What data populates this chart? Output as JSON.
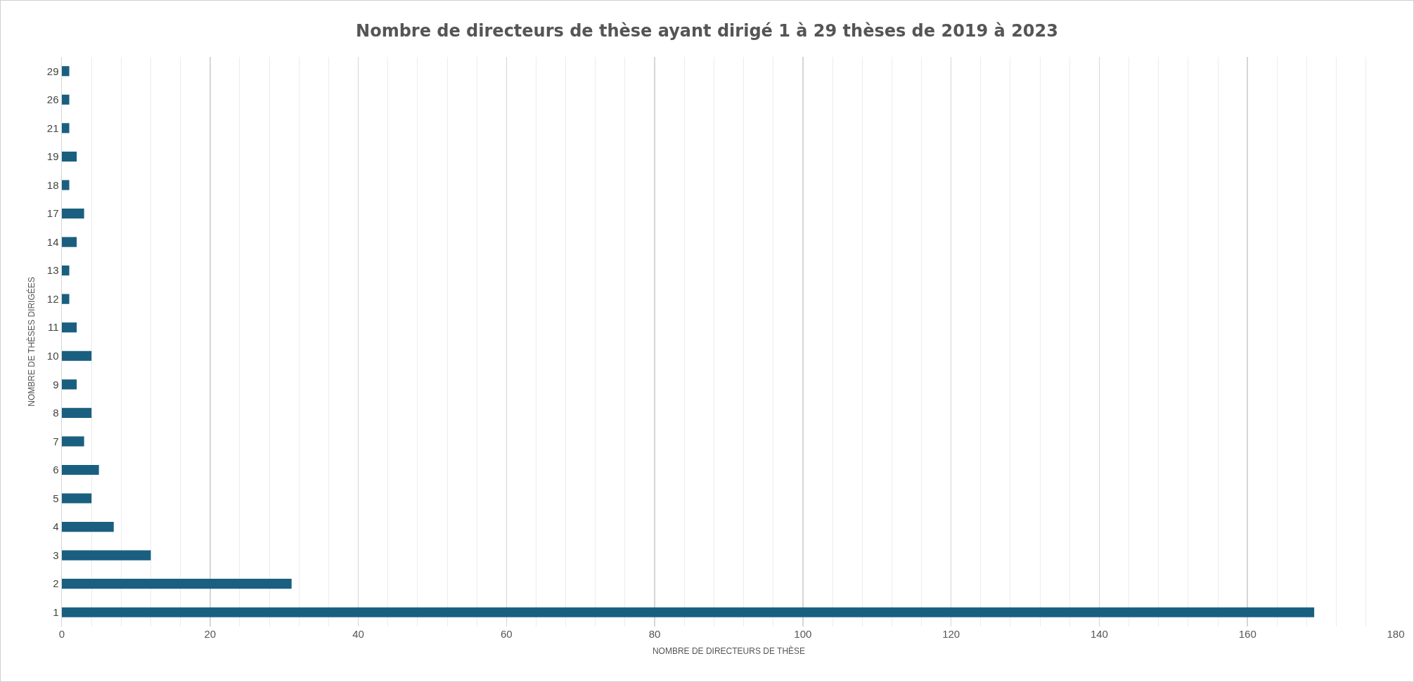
{
  "chart_data": {
    "type": "bar",
    "orientation": "horizontal",
    "title": "Nombre de directeurs de thèse ayant dirigé 1 à 29 thèses de 2019 à 2023",
    "xlabel": "NOMBRE DE DIRECTEURS DE THÈSE",
    "ylabel": "NOMBRE DE THÈSES DIRIGÉES",
    "categories": [
      "29",
      "26",
      "21",
      "19",
      "18",
      "17",
      "14",
      "13",
      "12",
      "11",
      "10",
      "9",
      "8",
      "7",
      "6",
      "5",
      "4",
      "3",
      "2",
      "1"
    ],
    "values": [
      1,
      1,
      1,
      2,
      1,
      3,
      2,
      1,
      1,
      2,
      4,
      2,
      4,
      3,
      5,
      4,
      7,
      12,
      31,
      169
    ],
    "color": "#1a5f80",
    "xlim": [
      0,
      180
    ],
    "xticks": [
      0,
      {
        "value": 4,
        "label": null
      },
      {
        "value": 8,
        "label": null
      },
      {
        "value": 12,
        "label": null
      },
      {
        "value": 16,
        "label": null
      },
      20,
      {
        "value": 24,
        "label": null
      },
      {
        "value": 28,
        "label": null
      },
      {
        "value": 32,
        "label": null
      },
      {
        "value": 36,
        "label": null
      },
      40,
      {
        "value": 44,
        "label": null
      },
      {
        "value": 48,
        "label": null
      },
      {
        "value": 52,
        "label": null
      },
      {
        "value": 56,
        "label": null
      },
      60,
      {
        "value": 64,
        "label": null
      },
      {
        "value": 68,
        "label": null
      },
      {
        "value": 72,
        "label": null
      },
      {
        "value": 76,
        "label": null
      },
      80,
      {
        "value": 84,
        "label": null
      },
      {
        "value": 88,
        "label": null
      },
      {
        "value": 92,
        "label": null
      },
      {
        "value": 96,
        "label": null
      },
      100,
      {
        "value": 104,
        "label": null
      },
      {
        "value": 108,
        "label": null
      },
      {
        "value": 112,
        "label": null
      },
      {
        "value": 116,
        "label": null
      },
      120,
      {
        "value": 124,
        "label": null
      },
      {
        "value": 128,
        "label": null
      },
      {
        "value": 132,
        "label": null
      },
      {
        "value": 136,
        "label": null
      },
      140,
      {
        "value": 144,
        "label": null
      },
      {
        "value": 148,
        "label": null
      },
      {
        "value": 152,
        "label": null
      },
      {
        "value": 156,
        "label": null
      },
      160,
      {
        "value": 164,
        "label": null
      },
      {
        "value": 168,
        "label": null
      },
      {
        "value": 172,
        "label": null
      },
      {
        "value": 176,
        "label": null
      },
      180
    ],
    "grid": "x"
  }
}
